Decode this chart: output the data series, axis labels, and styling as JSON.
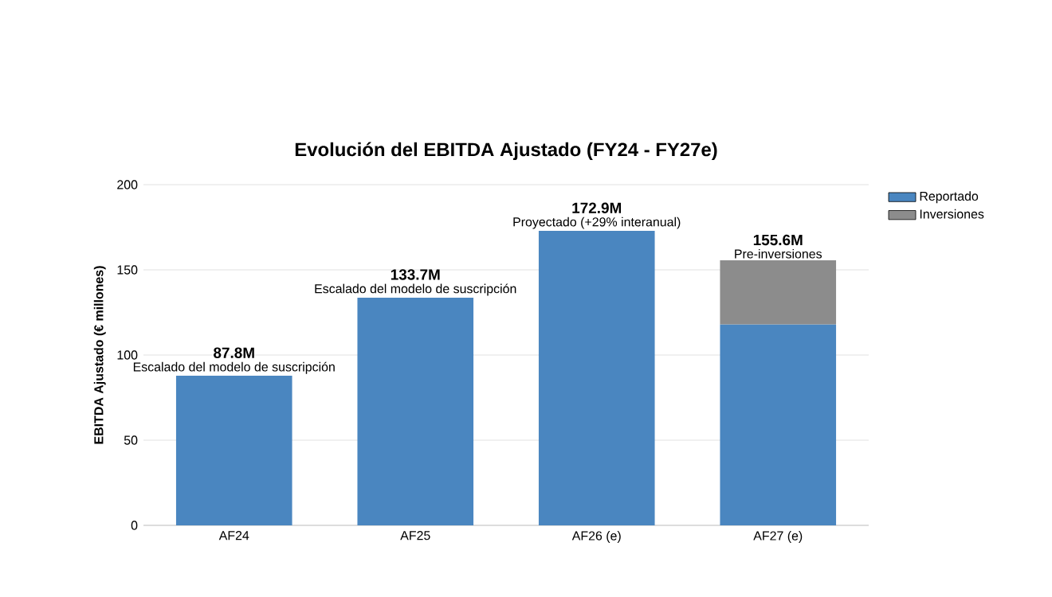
{
  "chart_data": {
    "type": "bar",
    "stacked": true,
    "title": "Evolución del EBITDA Ajustado (FY24 - FY27e)",
    "ylabel": "EBITDA Ajustado (€ millones)",
    "categories": [
      "AF24",
      "AF25",
      "AF26 (e)",
      "AF27 (e)"
    ],
    "series": [
      {
        "name": "Reportado",
        "color": "#4a86c0",
        "values": [
          87.8,
          133.7,
          172.9,
          118
        ]
      },
      {
        "name": "Inversiones",
        "color": "#8c8c8c",
        "values": [
          null,
          null,
          null,
          37.6
        ]
      }
    ],
    "totals": [
      "87.8M",
      "133.7M",
      "172.9M",
      "155.6M"
    ],
    "annotations": [
      {
        "text": "Escalado del modelo de suscripción",
        "x": "AF24",
        "y": 87.8
      },
      {
        "text": "Escalado del modelo de suscripción",
        "x": "AF25",
        "y": 133.7
      },
      {
        "text": "Proyectado (+29% interanual)",
        "x": "AF26 (e)",
        "y": 172.9
      },
      {
        "text": "Pre-inversiones",
        "x": "AF27 (e)",
        "y": 155.6
      }
    ],
    "ylim": [
      0,
      200
    ],
    "yticks": [
      0,
      50,
      100,
      150,
      200
    ],
    "grid": "y",
    "legend": "top right"
  }
}
